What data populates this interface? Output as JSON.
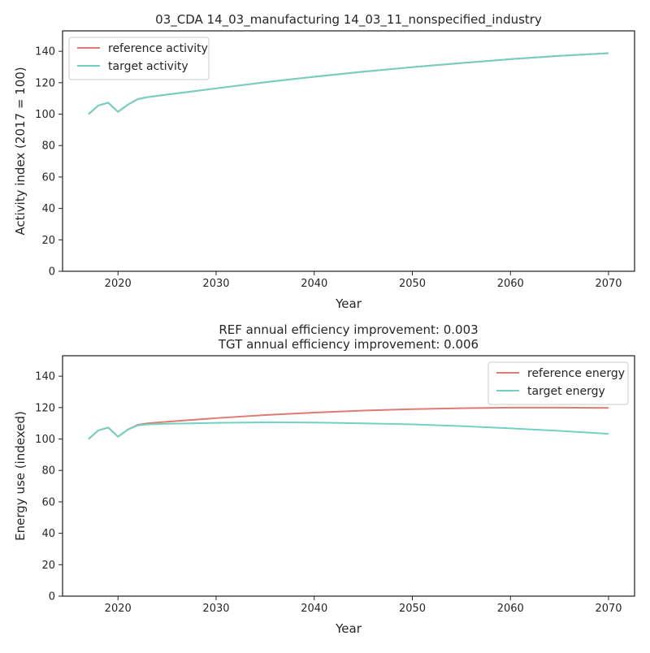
{
  "chart_data": [
    {
      "type": "line",
      "title": "03_CDA 14_03_manufacturing 14_03_11_nonspecified_industry",
      "xlabel": "Year",
      "ylabel": "Activity index (2017 = 100)",
      "xlim": [
        2014.35,
        2072.65
      ],
      "ylim": [
        0,
        153
      ],
      "xticks": [
        2020,
        2030,
        2040,
        2050,
        2060,
        2070
      ],
      "yticks": [
        0,
        20,
        40,
        60,
        80,
        100,
        120,
        140
      ],
      "grid": false,
      "legend_position": "upper left",
      "x": [
        2017,
        2018,
        2019,
        2020,
        2021,
        2022,
        2023,
        2025,
        2030,
        2035,
        2040,
        2045,
        2050,
        2055,
        2060,
        2065,
        2070
      ],
      "series": [
        {
          "name": "reference activity",
          "color": "#e07b72",
          "values": [
            100,
            105.5,
            107.3,
            101.5,
            106,
            109.5,
            110.8,
            112.4,
            116.4,
            120.3,
            123.8,
            127.0,
            129.9,
            132.5,
            135.0,
            137.1,
            138.8
          ]
        },
        {
          "name": "target activity",
          "color": "#72d1c3",
          "values": [
            100,
            105.5,
            107.3,
            101.5,
            106,
            109.5,
            110.8,
            112.4,
            116.4,
            120.3,
            123.8,
            127.0,
            129.9,
            132.5,
            135.0,
            137.1,
            138.8
          ]
        }
      ]
    },
    {
      "type": "line",
      "title": "REF annual efficiency improvement: 0.003\nTGT annual efficiency improvement: 0.006",
      "xlabel": "Year",
      "ylabel": "Energy use (indexed)",
      "xlim": [
        2014.35,
        2072.65
      ],
      "ylim": [
        0,
        153
      ],
      "xticks": [
        2020,
        2030,
        2040,
        2050,
        2060,
        2070
      ],
      "yticks": [
        0,
        20,
        40,
        60,
        80,
        100,
        120,
        140
      ],
      "grid": false,
      "legend_position": "upper right",
      "x": [
        2017,
        2018,
        2019,
        2020,
        2021,
        2022,
        2023,
        2025,
        2030,
        2035,
        2040,
        2045,
        2050,
        2055,
        2060,
        2065,
        2070
      ],
      "series": [
        {
          "name": "reference energy",
          "color": "#e07b72",
          "values": [
            100,
            105.5,
            107.3,
            101.5,
            106,
            109.0,
            110.0,
            111.0,
            113.3,
            115.3,
            116.8,
            118.1,
            119.0,
            119.6,
            120.0,
            120.0,
            119.8
          ]
        },
        {
          "name": "target energy",
          "color": "#72d1c3",
          "values": [
            100,
            105.5,
            107.3,
            101.5,
            106,
            108.6,
            109.3,
            109.7,
            110.3,
            110.6,
            110.5,
            110.0,
            109.3,
            108.2,
            106.8,
            105.2,
            103.3
          ]
        }
      ]
    }
  ]
}
